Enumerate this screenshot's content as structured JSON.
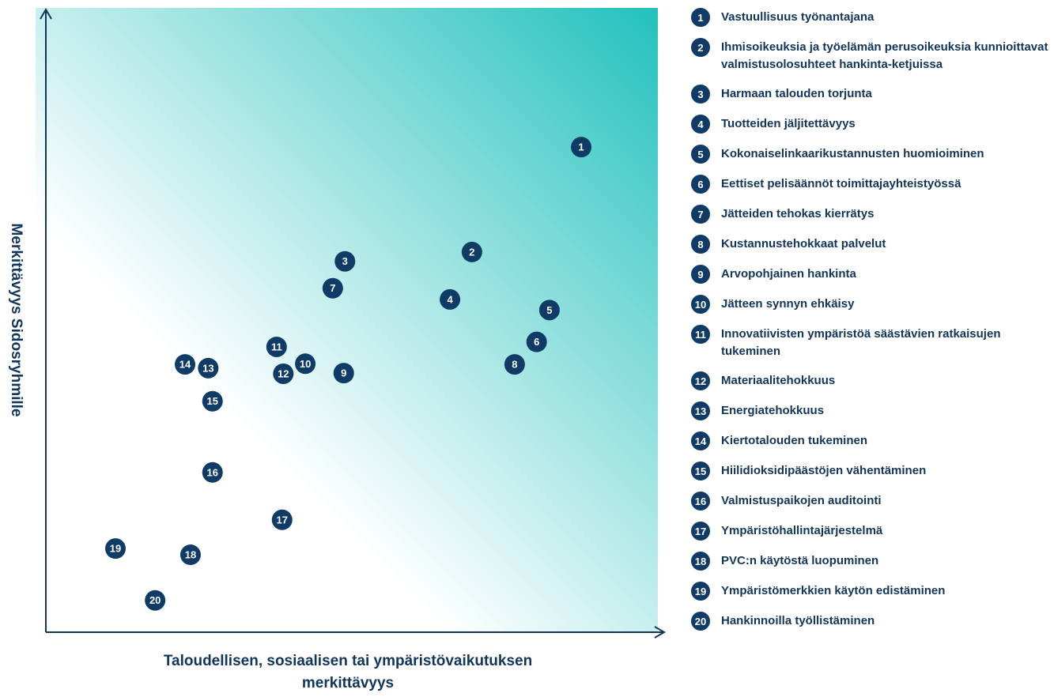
{
  "chart_data": {
    "type": "scatter",
    "xlabel": "Taloudellisen, sosiaalisen tai ympäristövaikutuksen merkittävyys",
    "ylabel": "Merkittävyys Sidosryhmille",
    "xlim": [
      0,
      100
    ],
    "ylim": [
      0,
      100
    ],
    "color": "#0f3b66",
    "gradient": [
      "#ffffff",
      "#22c1bd"
    ],
    "labels": [
      "1",
      "2",
      "3",
      "4",
      "5",
      "6",
      "7",
      "8",
      "9",
      "10",
      "11",
      "12",
      "13",
      "14",
      "15",
      "16",
      "17",
      "18",
      "19",
      "20"
    ],
    "names": [
      "Vastuullisuus työnantajana",
      "Ihmisoikeuksia ja työelämän perusoikeuksia kunnioittavat valmistusolosuhteet hankinta-ketjuissa",
      "Harmaan talouden torjunta",
      "Tuotteiden jäljitettävyys",
      "Kokonaiselinkaarikustannusten huomioiminen",
      "Eettiset pelisäännöt toimittajayhteistyössä",
      "Jätteiden tehokas kierrätys",
      "Kustannustehokkaat palvelut",
      "Arvopohjainen hankinta",
      "Jätteen synnyn ehkäisy",
      "Innovatiivisten ympäristöä säästävien ratkaisujen tukeminen",
      "Materiaalitehokkuus",
      "Energiatehokkuus",
      "Kiertotalouden tukeminen",
      "Hiilidioksidipäästöjen vähentäminen",
      "Valmistuspaikojen auditointi",
      "Ympäristöhallintajärjestelmä",
      "PVC:n käytöstä luopuminen",
      "Ympäristömerkkien käytön edistäminen",
      "Hankinnoilla työllistäminen"
    ],
    "x": [
      87.7,
      69.8,
      49.0,
      66.2,
      82.5,
      80.4,
      47.0,
      76.8,
      48.8,
      42.5,
      37.8,
      38.9,
      26.6,
      22.8,
      27.3,
      27.3,
      38.7,
      23.7,
      11.4,
      17.9
    ],
    "y": [
      77.7,
      60.9,
      59.4,
      53.3,
      51.6,
      46.5,
      55.1,
      42.9,
      41.5,
      43.0,
      45.7,
      41.4,
      42.3,
      42.9,
      37.0,
      25.6,
      18.0,
      12.4,
      13.4,
      5.1
    ]
  }
}
